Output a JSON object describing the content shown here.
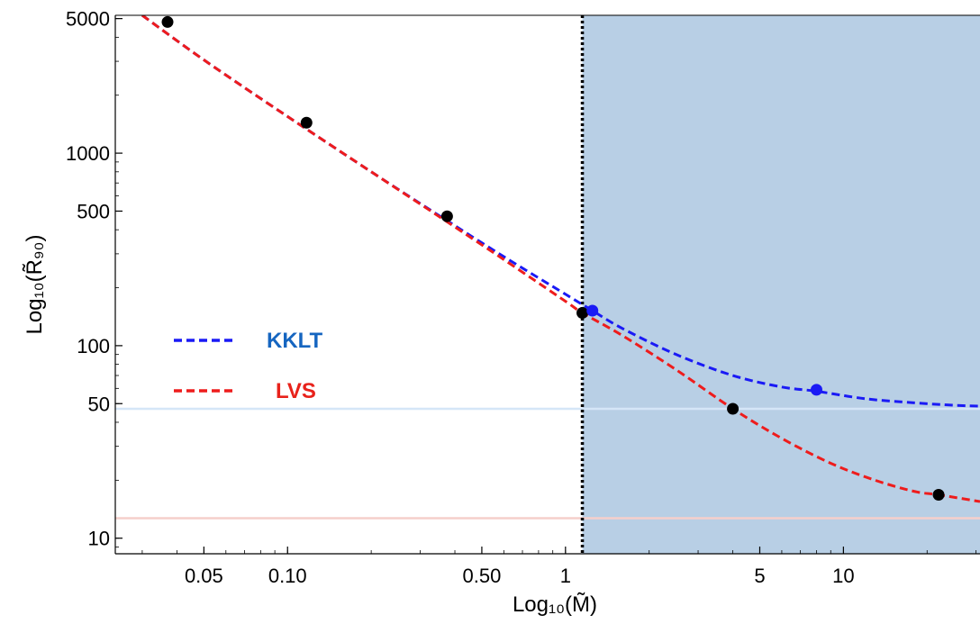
{
  "chart_data": {
    "type": "line",
    "xlabel": "Log₁₀(M̃)",
    "ylabel": "Log₁₀(R̃₉₀)",
    "x_scale": "log",
    "y_scale": "log",
    "xlim": [
      0.024,
      31
    ],
    "ylim": [
      8.3,
      5200
    ],
    "x_ticks": [
      {
        "value": 0.05,
        "label": "0.05"
      },
      {
        "value": 0.1,
        "label": "0.10"
      },
      {
        "value": 0.5,
        "label": "0.50"
      },
      {
        "value": 1,
        "label": "1"
      },
      {
        "value": 5,
        "label": "5"
      },
      {
        "value": 10,
        "label": "10"
      }
    ],
    "y_ticks": [
      {
        "value": 10,
        "label": "10"
      },
      {
        "value": 50,
        "label": "50"
      },
      {
        "value": 100,
        "label": "100"
      },
      {
        "value": 500,
        "label": "500"
      },
      {
        "value": 1000,
        "label": "1000"
      },
      {
        "value": 5000,
        "label": "5000"
      }
    ],
    "vertical_line": {
      "x": 1.15,
      "style": "dotted",
      "color": "#000000"
    },
    "shaded_region": {
      "x_from": 1.15,
      "x_to": 31,
      "color": "#b8cfe5"
    },
    "horizontal_lines": [
      {
        "y": 47,
        "color": "#d5e6f7"
      },
      {
        "y": 12.7,
        "color": "#f5cfcb"
      }
    ],
    "series": [
      {
        "name": "KKLT",
        "color": "#1a1af5",
        "label_color": "#1565c0",
        "dash": "9,5",
        "x": [
          0.03,
          0.05,
          0.1,
          0.2,
          0.35,
          0.6,
          1.0,
          1.25,
          1.6,
          2.5,
          4,
          6,
          8,
          12,
          18,
          25,
          31
        ],
        "y": [
          5200,
          3050,
          1550,
          800,
          475,
          290,
          185,
          152,
          123,
          90,
          70,
          61,
          58,
          53,
          50.5,
          49,
          48.5
        ]
      },
      {
        "name": "LVS",
        "color": "#ee1c1c",
        "label_color": "#e8221b",
        "dash": "9,5",
        "x": [
          0.03,
          0.05,
          0.1,
          0.2,
          0.35,
          0.6,
          1.0,
          1.15,
          1.6,
          2.5,
          4,
          6,
          9,
          13,
          18,
          22,
          31
        ],
        "y": [
          5200,
          3050,
          1550,
          800,
          470,
          280,
          170,
          148,
          113,
          75,
          47,
          33,
          24.5,
          20,
          17.5,
          16.8,
          15.5
        ]
      }
    ],
    "markers": [
      {
        "x": 0.037,
        "y": 4800,
        "color": "#000000"
      },
      {
        "x": 0.117,
        "y": 1440,
        "color": "#000000"
      },
      {
        "x": 0.375,
        "y": 470,
        "color": "#000000"
      },
      {
        "x": 1.15,
        "y": 148,
        "color": "#000000"
      },
      {
        "x": 1.25,
        "y": 152,
        "color": "#1a1af5"
      },
      {
        "x": 8,
        "y": 59,
        "color": "#1a1af5"
      },
      {
        "x": 4,
        "y": 47,
        "color": "#000000"
      },
      {
        "x": 22,
        "y": 16.8,
        "color": "#000000"
      }
    ],
    "legend": {
      "position": "middle-left",
      "entries": [
        {
          "label": "KKLT"
        },
        {
          "label": "LVS"
        }
      ]
    },
    "grid": false
  }
}
